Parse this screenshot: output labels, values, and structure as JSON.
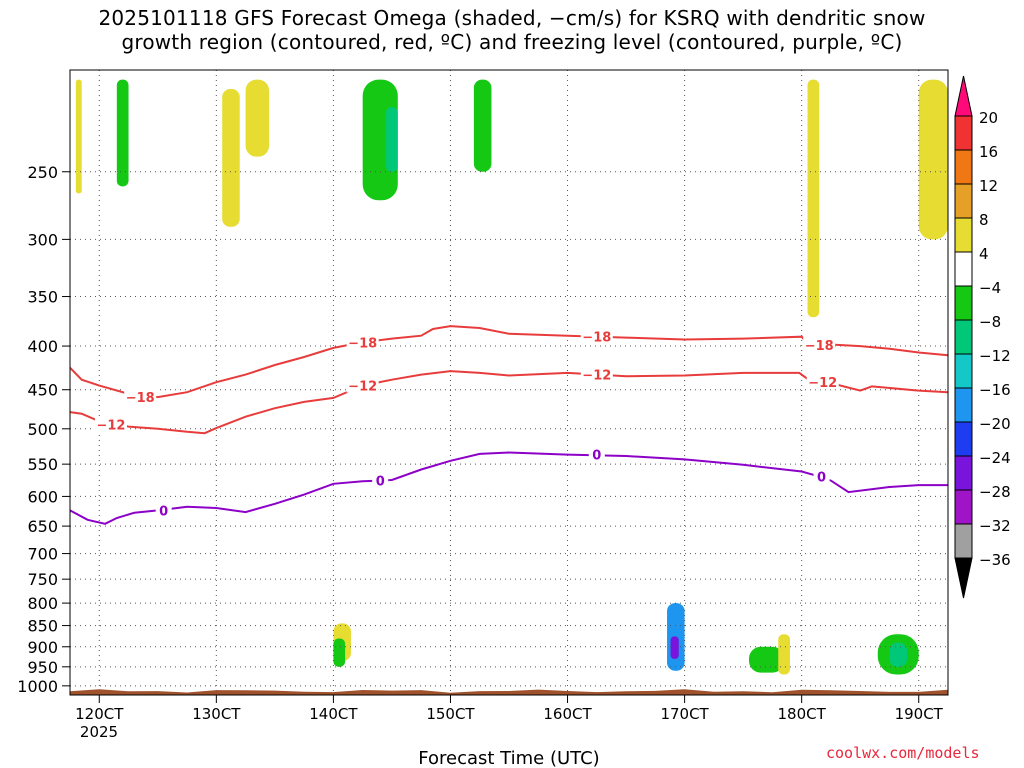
{
  "chart_data": {
    "type": "heatmap",
    "title_lines": [
      "2025101118 GFS Forecast Omega (shaded, −cm/s) for KSRQ with dendritic snow",
      "growth region (contoured, red, ºC) and freezing level (contoured, purple, ºC)"
    ],
    "xlabel": "Forecast Time (UTC)",
    "ylabel": "",
    "x_ticks": [
      {
        "day": 12,
        "label": "120CT"
      },
      {
        "day": 13,
        "label": "130CT"
      },
      {
        "day": 14,
        "label": "140CT"
      },
      {
        "day": 15,
        "label": "150CT"
      },
      {
        "day": 16,
        "label": "160CT"
      },
      {
        "day": 17,
        "label": "170CT"
      },
      {
        "day": 18,
        "label": "180CT"
      },
      {
        "day": 19,
        "label": "190CT"
      }
    ],
    "x_year_label": "2025",
    "xlim": [
      11.75,
      19.25
    ],
    "ylim_hPa": [
      1025,
      190
    ],
    "y_ticks": [
      250,
      300,
      350,
      400,
      450,
      500,
      550,
      600,
      650,
      700,
      750,
      800,
      850,
      900,
      950,
      1000
    ],
    "colorbar": {
      "levels": [
        "20",
        "16",
        "12",
        "8",
        "4",
        "-4",
        "-8",
        "-12",
        "-16",
        "-20",
        "-24",
        "-28",
        "-32",
        "-36"
      ],
      "colors": [
        "#ff0a78",
        "#f03232",
        "#f07814",
        "#e6a028",
        "#e6dc32",
        "#ffffff",
        "#14c814",
        "#00c878",
        "#14c8c8",
        "#1e96f0",
        "#1e3cf0",
        "#7814dc",
        "#a014c8",
        "#a0a0a0",
        "#000000"
      ],
      "top_color": "#ff0a78",
      "bottom_color": "#000000"
    },
    "contours": [
      {
        "name": "dgz-minus18",
        "label": "-18",
        "color": "#e83c3c",
        "points": [
          [
            11.75,
            424
          ],
          [
            11.85,
            438
          ],
          [
            12.0,
            445
          ],
          [
            12.25,
            455
          ],
          [
            12.5,
            459
          ],
          [
            12.75,
            453
          ],
          [
            13.0,
            441
          ],
          [
            13.25,
            432
          ],
          [
            13.5,
            421
          ],
          [
            13.75,
            412
          ],
          [
            14.0,
            402
          ],
          [
            14.25,
            396
          ],
          [
            14.5,
            392
          ],
          [
            14.75,
            389
          ],
          [
            14.85,
            382
          ],
          [
            15.0,
            379
          ],
          [
            15.25,
            381
          ],
          [
            15.5,
            387
          ],
          [
            16.0,
            389
          ],
          [
            16.5,
            391
          ],
          [
            17.0,
            393
          ],
          [
            17.5,
            392
          ],
          [
            18.0,
            390
          ],
          [
            18.05,
            397
          ],
          [
            18.5,
            400
          ],
          [
            18.75,
            403
          ],
          [
            19.0,
            407
          ],
          [
            19.25,
            410
          ]
        ],
        "label_at": [
          [
            12.35,
            459
          ],
          [
            14.25,
            396
          ],
          [
            16.25,
            390
          ],
          [
            18.15,
            399
          ]
        ]
      },
      {
        "name": "dgz-minus12",
        "label": "-12",
        "color": "#e83c3c",
        "points": [
          [
            11.75,
            478
          ],
          [
            11.85,
            480
          ],
          [
            12.0,
            490
          ],
          [
            12.25,
            497
          ],
          [
            12.5,
            500
          ],
          [
            12.75,
            504
          ],
          [
            12.9,
            506
          ],
          [
            13.0,
            499
          ],
          [
            13.25,
            484
          ],
          [
            13.5,
            473
          ],
          [
            13.75,
            465
          ],
          [
            14.0,
            460
          ],
          [
            14.25,
            445
          ],
          [
            14.5,
            438
          ],
          [
            14.75,
            432
          ],
          [
            15.0,
            428
          ],
          [
            15.25,
            430
          ],
          [
            15.5,
            433
          ],
          [
            16.0,
            430
          ],
          [
            16.5,
            434
          ],
          [
            17.0,
            433
          ],
          [
            17.5,
            430
          ],
          [
            17.98,
            430
          ],
          [
            18.05,
            437
          ],
          [
            18.25,
            442
          ],
          [
            18.5,
            451
          ],
          [
            18.6,
            446
          ],
          [
            19.0,
            451
          ],
          [
            19.25,
            453
          ]
        ],
        "label_at": [
          [
            12.1,
            494
          ],
          [
            14.25,
            445
          ],
          [
            16.25,
            432
          ],
          [
            18.18,
            441
          ]
        ]
      },
      {
        "name": "freezing-level-0",
        "label": "0",
        "color": "#8c00c8",
        "points": [
          [
            11.75,
            623
          ],
          [
            11.9,
            639
          ],
          [
            12.05,
            646
          ],
          [
            12.15,
            636
          ],
          [
            12.3,
            627
          ],
          [
            12.5,
            623
          ],
          [
            12.75,
            617
          ],
          [
            13.0,
            619
          ],
          [
            13.25,
            626
          ],
          [
            13.5,
            612
          ],
          [
            13.75,
            597
          ],
          [
            14.0,
            580
          ],
          [
            14.25,
            576
          ],
          [
            14.5,
            574
          ],
          [
            14.75,
            558
          ],
          [
            15.0,
            545
          ],
          [
            15.25,
            535
          ],
          [
            15.5,
            533
          ],
          [
            16.0,
            536
          ],
          [
            16.5,
            538
          ],
          [
            17.0,
            543
          ],
          [
            17.5,
            551
          ],
          [
            18.0,
            561
          ],
          [
            18.1,
            566
          ],
          [
            18.25,
            575
          ],
          [
            18.4,
            593
          ],
          [
            18.75,
            585
          ],
          [
            19.0,
            582
          ],
          [
            19.25,
            582
          ]
        ],
        "label_at": [
          [
            12.55,
            623
          ],
          [
            14.4,
            575
          ],
          [
            16.25,
            536
          ],
          [
            18.17,
            569
          ]
        ]
      }
    ],
    "shaded_regions": [
      {
        "name": "omega-yellow-upper-1",
        "category": "4",
        "x": [
          11.8,
          11.85
        ],
        "p": [
          195,
          265
        ]
      },
      {
        "name": "omega-green-upper-1",
        "category": "-4",
        "x": [
          12.15,
          12.25
        ],
        "p": [
          195,
          260
        ]
      },
      {
        "name": "omega-yellow-upper-2",
        "category": "4",
        "x": [
          13.05,
          13.2
        ],
        "p": [
          200,
          290
        ]
      },
      {
        "name": "omega-yellow-upper-3",
        "category": "4",
        "x": [
          13.25,
          13.45
        ],
        "p": [
          195,
          240
        ]
      },
      {
        "name": "omega-green-upper-2",
        "category": "-4",
        "x": [
          15.2,
          15.35
        ],
        "p": [
          195,
          250
        ]
      },
      {
        "name": "omega-green-upper-3",
        "category": "-4",
        "x": [
          14.25,
          14.55
        ],
        "p": [
          195,
          270
        ]
      },
      {
        "name": "omega-cyan-upper",
        "category": "-8",
        "x": [
          14.45,
          14.55
        ],
        "p": [
          210,
          250
        ]
      },
      {
        "name": "omega-yellow-upper-4",
        "category": "4",
        "x": [
          18.05,
          18.15
        ],
        "p": [
          195,
          370
        ]
      },
      {
        "name": "omega-yellow-upper-5",
        "category": "4",
        "x": [
          19.0,
          19.25
        ],
        "p": [
          195,
          300
        ]
      },
      {
        "name": "omega-yellow-lower-1",
        "category": "4",
        "x": [
          14.0,
          14.15
        ],
        "p": [
          845,
          935
        ]
      },
      {
        "name": "omega-green-lower-1",
        "category": "-4",
        "x": [
          14.0,
          14.1
        ],
        "p": [
          880,
          950
        ]
      },
      {
        "name": "omega-blue-lower-1",
        "category": "-16",
        "x": [
          16.85,
          17.0
        ],
        "p": [
          800,
          960
        ]
      },
      {
        "name": "omega-purple-lower-1",
        "category": "-24",
        "x": [
          16.88,
          16.95
        ],
        "p": [
          875,
          930
        ]
      },
      {
        "name": "omega-green-lower-2",
        "category": "-4",
        "x": [
          17.55,
          17.85
        ],
        "p": [
          900,
          965
        ]
      },
      {
        "name": "omega-yellow-lower-2",
        "category": "4",
        "x": [
          17.8,
          17.9
        ],
        "p": [
          870,
          970
        ]
      },
      {
        "name": "omega-green-lower-3",
        "category": "-4",
        "x": [
          18.65,
          19.0
        ],
        "p": [
          870,
          970
        ]
      },
      {
        "name": "omega-cyan-lower-3",
        "category": "-8",
        "x": [
          18.75,
          18.9
        ],
        "p": [
          890,
          950
        ]
      }
    ],
    "terrain": {
      "label": "surface",
      "color": "#a0522d"
    }
  },
  "credit": "coolwx.com/models"
}
